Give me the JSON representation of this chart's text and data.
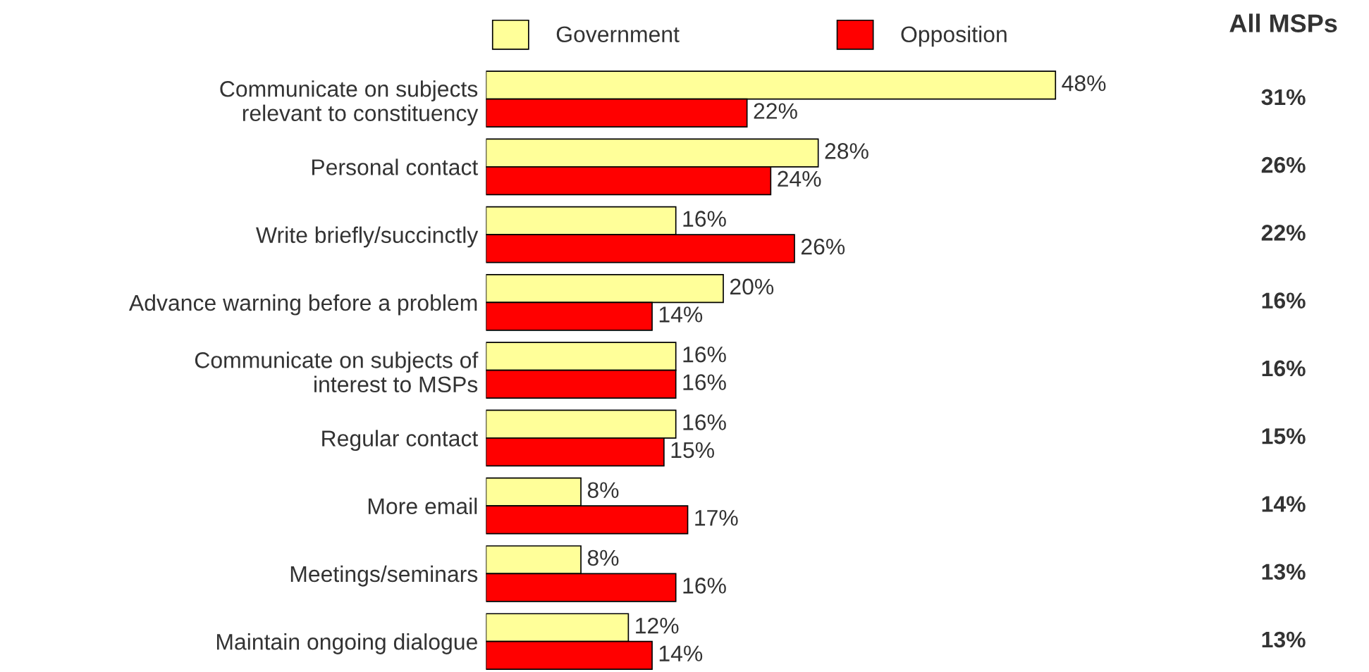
{
  "chart_data": {
    "type": "bar",
    "orientation": "horizontal",
    "categories": [
      "Communicate on subjects\nrelevant to constituency",
      "Personal contact",
      "Write briefly/succinctly",
      "Advance warning before a problem",
      "Communicate on subjects of\ninterest to MSPs",
      "Regular contact",
      "More email",
      "Meetings/seminars",
      "Maintain ongoing dialogue"
    ],
    "series": [
      {
        "name": "Government",
        "color": "#ffff99",
        "values": [
          48,
          28,
          16,
          20,
          16,
          16,
          8,
          8,
          12
        ],
        "value_labels": [
          "48%",
          "28%",
          "16%",
          "20%",
          "16%",
          "16%",
          "8%",
          "8%",
          "12%"
        ]
      },
      {
        "name": "Opposition",
        "color": "#ff0000",
        "values": [
          22,
          24,
          26,
          14,
          16,
          15,
          17,
          16,
          14
        ],
        "value_labels": [
          "22%",
          "24%",
          "26%",
          "14%",
          "16%",
          "15%",
          "17%",
          "16%",
          "14%"
        ]
      }
    ],
    "legend": "top",
    "grid": false,
    "annotations": [
      "All MSPs",
      "31%",
      "26%",
      "22%",
      "16%",
      "16%",
      "15%",
      "14%",
      "13%",
      "13%"
    ]
  }
}
